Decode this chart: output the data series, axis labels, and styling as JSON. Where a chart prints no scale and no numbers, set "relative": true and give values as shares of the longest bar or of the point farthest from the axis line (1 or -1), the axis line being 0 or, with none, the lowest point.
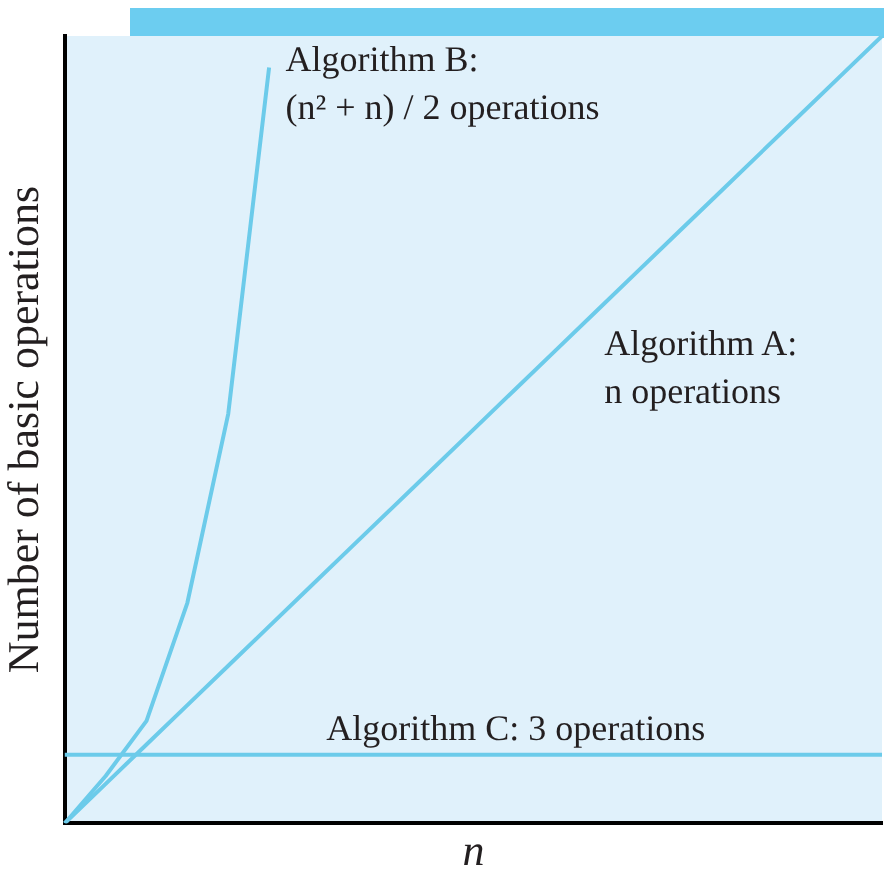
{
  "chart_data": {
    "type": "line",
    "relative": true,
    "xlabel": "n",
    "ylabel": "Number of basic operations",
    "categories": [
      null,
      null,
      null,
      null,
      null,
      null,
      null,
      null,
      null,
      null,
      null,
      null,
      null,
      null,
      null,
      null,
      null,
      null,
      null,
      null,
      null
    ],
    "series": [
      {
        "name": "Algorithm B: (n² + n) / 2 operations",
        "color": "#6ccbea",
        "values": [
          0,
          0.06,
          0.13,
          0.28,
          0.52,
          0.96,
          null,
          null,
          null,
          null,
          null,
          null,
          null,
          null,
          null,
          null,
          null,
          null,
          null,
          null,
          null
        ]
      },
      {
        "name": "Algorithm A: n operations",
        "color": "#6ccbea",
        "values": [
          0,
          0.05,
          0.1,
          0.15,
          0.2,
          0.25,
          0.3,
          0.35,
          0.4,
          0.45,
          0.5,
          0.55,
          0.6,
          0.65,
          0.7,
          0.75,
          0.8,
          0.85,
          0.9,
          0.95,
          1
        ]
      },
      {
        "name": "Algorithm C: 3 operations",
        "color": "#6ccbea",
        "values": [
          0.087,
          0.087,
          0.087,
          0.087,
          0.087,
          0.087,
          0.087,
          0.087,
          0.087,
          0.087,
          0.087,
          0.087,
          0.087,
          0.087,
          0.087,
          0.087,
          0.087,
          0.087,
          0.087,
          0.087,
          0.087
        ]
      }
    ],
    "grid": false,
    "legend": false,
    "marker": "none",
    "line_style": "solid"
  }
}
